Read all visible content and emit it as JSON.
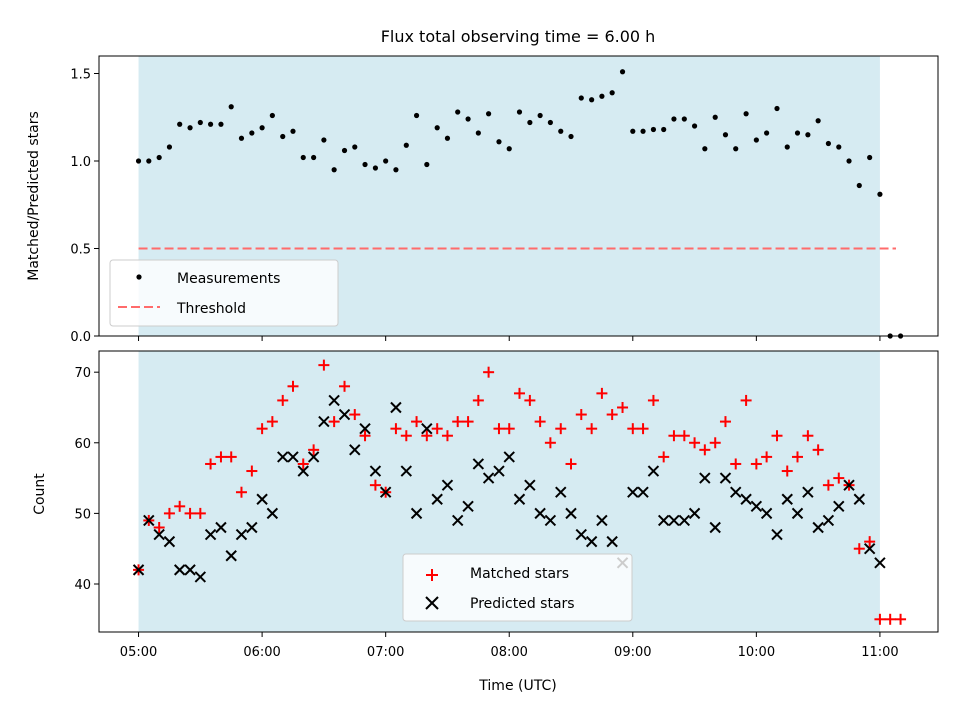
{
  "figure": {
    "title": "Flux total observing time = 6.00 h",
    "colors": {
      "background_span": "#add8e6",
      "measurements": "#000000",
      "threshold": "#ff6b6b",
      "matched": "#ff0000",
      "predicted": "#000000"
    }
  },
  "chart_data": [
    {
      "type": "scatter",
      "ylabel": "Matched/Predicted stars",
      "xlabel": "",
      "xlim_hours": [
        4.68,
        11.47
      ],
      "ylim": [
        0,
        1.6
      ],
      "yticks": [
        0.0,
        0.5,
        1.0,
        1.5
      ],
      "ytick_labels": [
        "0.0",
        "0.5",
        "1.0",
        "1.5"
      ],
      "shaded_span_hours": [
        5.0,
        11.0
      ],
      "legend": {
        "placement": "lower-left",
        "entries": [
          "Measurements",
          "Threshold"
        ]
      },
      "series": [
        {
          "name": "Measurements",
          "marker": "dot",
          "x_hours": [
            5.0,
            5.083,
            5.167,
            5.25,
            5.333,
            5.417,
            5.5,
            5.583,
            5.667,
            5.75,
            5.833,
            5.917,
            6.0,
            6.083,
            6.167,
            6.25,
            6.333,
            6.417,
            6.5,
            6.583,
            6.667,
            6.75,
            6.833,
            6.917,
            7.0,
            7.083,
            7.167,
            7.25,
            7.333,
            7.417,
            7.5,
            7.583,
            7.667,
            7.75,
            7.833,
            7.917,
            8.0,
            8.083,
            8.167,
            8.25,
            8.333,
            8.417,
            8.5,
            8.583,
            8.667,
            8.75,
            8.833,
            8.917,
            9.0,
            9.083,
            9.167,
            9.25,
            9.333,
            9.417,
            9.5,
            9.583,
            9.667,
            9.75,
            9.833,
            9.917,
            10.0,
            10.083,
            10.167,
            10.25,
            10.333,
            10.417,
            10.5,
            10.583,
            10.667,
            10.75,
            10.833,
            10.917,
            11.0,
            11.083,
            11.167
          ],
          "y": [
            1.0,
            1.0,
            1.02,
            1.08,
            1.21,
            1.19,
            1.22,
            1.21,
            1.21,
            1.31,
            1.13,
            1.16,
            1.19,
            1.26,
            1.14,
            1.17,
            1.02,
            1.02,
            1.12,
            0.95,
            1.06,
            1.08,
            0.98,
            0.96,
            1.0,
            0.95,
            1.09,
            1.26,
            0.98,
            1.19,
            1.13,
            1.28,
            1.24,
            1.16,
            1.27,
            1.11,
            1.07,
            1.28,
            1.22,
            1.26,
            1.22,
            1.17,
            1.14,
            1.36,
            1.35,
            1.37,
            1.39,
            1.51,
            1.17,
            1.17,
            1.18,
            1.18,
            1.24,
            1.24,
            1.2,
            1.07,
            1.25,
            1.15,
            1.07,
            1.27,
            1.12,
            1.16,
            1.3,
            1.08,
            1.16,
            1.15,
            1.23,
            1.1,
            1.08,
            1.0,
            0.86,
            1.02,
            0.81,
            0.0,
            0.0
          ]
        },
        {
          "name": "Threshold",
          "style": "dashed",
          "x_hours": [
            5.0,
            11.13
          ],
          "y": [
            0.5,
            0.5
          ]
        }
      ]
    },
    {
      "type": "scatter",
      "ylabel": "Count",
      "xlabel": "Time (UTC)",
      "xlim_hours": [
        4.68,
        11.47
      ],
      "ylim": [
        33.2,
        73.0
      ],
      "yticks": [
        40,
        50,
        60,
        70
      ],
      "ytick_labels": [
        "40",
        "50",
        "60",
        "70"
      ],
      "xticks_hours": [
        5,
        6,
        7,
        8,
        9,
        10,
        11
      ],
      "xtick_labels": [
        "05:00",
        "06:00",
        "07:00",
        "08:00",
        "09:00",
        "10:00",
        "11:00"
      ],
      "shaded_span_hours": [
        5.0,
        11.0
      ],
      "legend": {
        "placement": "lower-center",
        "entries": [
          "Matched stars",
          "Predicted stars"
        ]
      },
      "series": [
        {
          "name": "Matched stars",
          "marker": "plus",
          "x_hours": [
            5.0,
            5.083,
            5.167,
            5.25,
            5.333,
            5.417,
            5.5,
            5.583,
            5.667,
            5.75,
            5.833,
            5.917,
            6.0,
            6.083,
            6.167,
            6.25,
            6.333,
            6.417,
            6.5,
            6.583,
            6.667,
            6.75,
            6.833,
            6.917,
            7.0,
            7.083,
            7.167,
            7.25,
            7.333,
            7.417,
            7.5,
            7.583,
            7.667,
            7.75,
            7.833,
            7.917,
            8.0,
            8.083,
            8.167,
            8.25,
            8.333,
            8.417,
            8.5,
            8.583,
            8.667,
            8.75,
            8.833,
            8.917,
            9.0,
            9.083,
            9.167,
            9.25,
            9.333,
            9.417,
            9.5,
            9.583,
            9.667,
            9.75,
            9.833,
            9.917,
            10.0,
            10.083,
            10.167,
            10.25,
            10.333,
            10.417,
            10.5,
            10.583,
            10.667,
            10.75,
            10.833,
            10.917,
            11.0,
            11.083,
            11.167
          ],
          "y": [
            42,
            49,
            48,
            50,
            51,
            50,
            50,
            57,
            58,
            58,
            53,
            56,
            62,
            63,
            66,
            68,
            57,
            59,
            71,
            63,
            68,
            64,
            61,
            54,
            53,
            62,
            61,
            63,
            61,
            62,
            61,
            63,
            63,
            66,
            70,
            62,
            62,
            67,
            66,
            63,
            60,
            62,
            57,
            64,
            62,
            67,
            64,
            65,
            62,
            62,
            66,
            58,
            61,
            61,
            60,
            59,
            60,
            63,
            57,
            66,
            57,
            58,
            61,
            56,
            58,
            61,
            59,
            54,
            55,
            54,
            45,
            46,
            35,
            35,
            35
          ]
        },
        {
          "name": "Predicted stars",
          "marker": "x",
          "x_hours": [
            5.0,
            5.083,
            5.167,
            5.25,
            5.333,
            5.417,
            5.5,
            5.583,
            5.667,
            5.75,
            5.833,
            5.917,
            6.0,
            6.083,
            6.167,
            6.25,
            6.333,
            6.417,
            6.5,
            6.583,
            6.667,
            6.75,
            6.833,
            6.917,
            7.0,
            7.083,
            7.167,
            7.25,
            7.333,
            7.417,
            7.5,
            7.583,
            7.667,
            7.75,
            7.833,
            7.917,
            8.0,
            8.083,
            8.167,
            8.25,
            8.333,
            8.417,
            8.5,
            8.583,
            8.667,
            8.75,
            8.833,
            8.917,
            9.0,
            9.083,
            9.167,
            9.25,
            9.333,
            9.417,
            9.5,
            9.583,
            9.667,
            9.75,
            9.833,
            9.917,
            10.0,
            10.083,
            10.167,
            10.25,
            10.333,
            10.417,
            10.5,
            10.583,
            10.667,
            10.75,
            10.833,
            10.917,
            11.0
          ],
          "y": [
            42,
            49,
            47,
            46,
            42,
            42,
            41,
            47,
            48,
            44,
            47,
            48,
            52,
            50,
            58,
            58,
            56,
            58,
            63,
            66,
            64,
            59,
            62,
            56,
            53,
            65,
            56,
            50,
            62,
            52,
            54,
            49,
            51,
            57,
            55,
            56,
            58,
            52,
            54,
            50,
            49,
            53,
            50,
            47,
            46,
            49,
            46,
            43,
            53,
            53,
            56,
            49,
            49,
            49,
            50,
            55,
            48,
            55,
            53,
            52,
            51,
            50,
            47,
            52,
            50,
            53,
            48,
            49,
            51,
            54,
            52,
            45,
            43
          ]
        }
      ]
    }
  ]
}
